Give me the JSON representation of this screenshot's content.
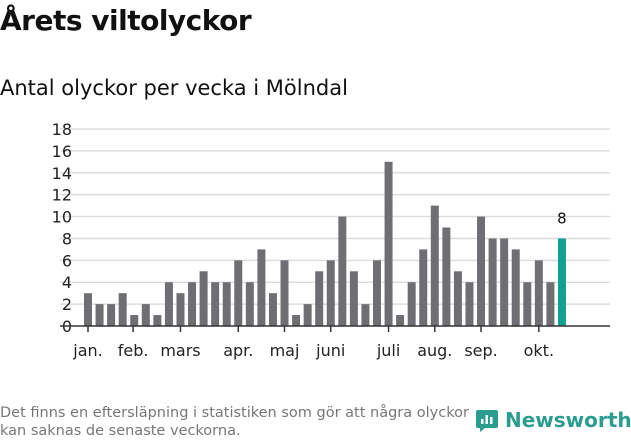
{
  "title": "Årets viltolyckor",
  "chart_data": {
    "type": "bar",
    "title": "Antal olyckor per vecka i Mölndal",
    "xlabel": "",
    "ylabel": "",
    "ylim": [
      0,
      18
    ],
    "yticks": [
      0,
      2,
      4,
      6,
      8,
      10,
      12,
      14,
      16,
      18
    ],
    "values": [
      3,
      2,
      2,
      3,
      1,
      2,
      1,
      4,
      3,
      4,
      5,
      4,
      4,
      6,
      4,
      7,
      3,
      6,
      1,
      2,
      5,
      6,
      10,
      5,
      2,
      6,
      15,
      1,
      4,
      7,
      11,
      9,
      5,
      4,
      10,
      8,
      8,
      7,
      4,
      6,
      4,
      8
    ],
    "month_ticks": [
      {
        "label": "jan.",
        "week_index": 0
      },
      {
        "label": "feb.",
        "week_index": 3.9
      },
      {
        "label": "mars",
        "week_index": 8
      },
      {
        "label": "apr.",
        "week_index": 13
      },
      {
        "label": "maj",
        "week_index": 17
      },
      {
        "label": "juni",
        "week_index": 21
      },
      {
        "label": "juli",
        "week_index": 26
      },
      {
        "label": "aug.",
        "week_index": 30
      },
      {
        "label": "sep.",
        "week_index": 34
      },
      {
        "label": "okt.",
        "week_index": 39
      }
    ],
    "last_label": "8",
    "grid": true,
    "colors": {
      "bar": "#6f6e73",
      "highlight": "#12a091",
      "grid": "#dddddd"
    }
  },
  "footer": {
    "note": "Det finns en eftersläpning i statistiken som gör att några olyckor kan saknas de senaste veckorna.",
    "brand": "Newsworthy"
  }
}
